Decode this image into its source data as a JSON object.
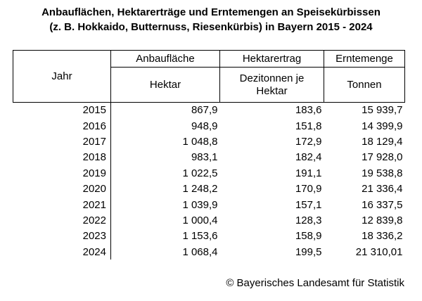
{
  "title": {
    "line1": "Anbauflächen, Hektarerträge und Erntemengen an Speisekürbissen",
    "line2": "(z. B. Hokkaido, Butternuss, Riesenkürbis) in Bayern 2015 - 2024"
  },
  "table": {
    "year_header": "Jahr",
    "groups": [
      {
        "name": "Anbaufläche",
        "unit": "Hektar"
      },
      {
        "name": "Hektarertrag",
        "unit": "Dezitonnen je Hektar"
      },
      {
        "name": "Erntemenge",
        "unit": "Tonnen"
      }
    ],
    "rows": [
      {
        "year": "2015",
        "area": "867,9",
        "yield": "183,6",
        "harvest": "15 939,7"
      },
      {
        "year": "2016",
        "area": "948,9",
        "yield": "151,8",
        "harvest": "14 399,9"
      },
      {
        "year": "2017",
        "area": "1 048,8",
        "yield": "172,9",
        "harvest": "18 129,4"
      },
      {
        "year": "2018",
        "area": "983,1",
        "yield": "182,4",
        "harvest": "17 928,0"
      },
      {
        "year": "2019",
        "area": "1 022,5",
        "yield": "191,1",
        "harvest": "19 538,8"
      },
      {
        "year": "2020",
        "area": "1 248,2",
        "yield": "170,9",
        "harvest": "21 336,4"
      },
      {
        "year": "2021",
        "area": "1 039,9",
        "yield": "157,1",
        "harvest": "16 337,5"
      },
      {
        "year": "2022",
        "area": "1 000,4",
        "yield": "128,3",
        "harvest": "12 839,8"
      },
      {
        "year": "2023",
        "area": "1 153,6",
        "yield": "158,9",
        "harvest": "18 336,2"
      },
      {
        "year": "2024",
        "area": "1 068,4",
        "yield": "199,5",
        "harvest": "21 310,01"
      }
    ]
  },
  "footer": {
    "source": "© Bayerisches Landesamt für Statistik"
  },
  "chart_data": {
    "type": "table",
    "title": "Anbauflächen, Hektarerträge und Erntemengen an Speisekürbissen (z. B. Hokkaido, Butternuss, Riesenkürbis) in Bayern 2015 - 2024",
    "columns": [
      "Jahr",
      "Anbaufläche (Hektar)",
      "Hektarertrag (Dezitonnen je Hektar)",
      "Erntemenge (Tonnen)"
    ],
    "rows": [
      [
        2015,
        867.9,
        183.6,
        15939.7
      ],
      [
        2016,
        948.9,
        151.8,
        14399.9
      ],
      [
        2017,
        1048.8,
        172.9,
        18129.4
      ],
      [
        2018,
        983.1,
        182.4,
        17928.0
      ],
      [
        2019,
        1022.5,
        191.1,
        19538.8
      ],
      [
        2020,
        1248.2,
        170.9,
        21336.4
      ],
      [
        2021,
        1039.9,
        157.1,
        16337.5
      ],
      [
        2022,
        1000.4,
        128.3,
        12839.8
      ],
      [
        2023,
        1153.6,
        158.9,
        18336.2
      ],
      [
        2024,
        1068.4,
        199.5,
        21310.01
      ]
    ],
    "source": "© Bayerisches Landesamt für Statistik",
    "colors": {
      "text": "#000000",
      "border": "#000000",
      "background": "#ffffff"
    }
  }
}
